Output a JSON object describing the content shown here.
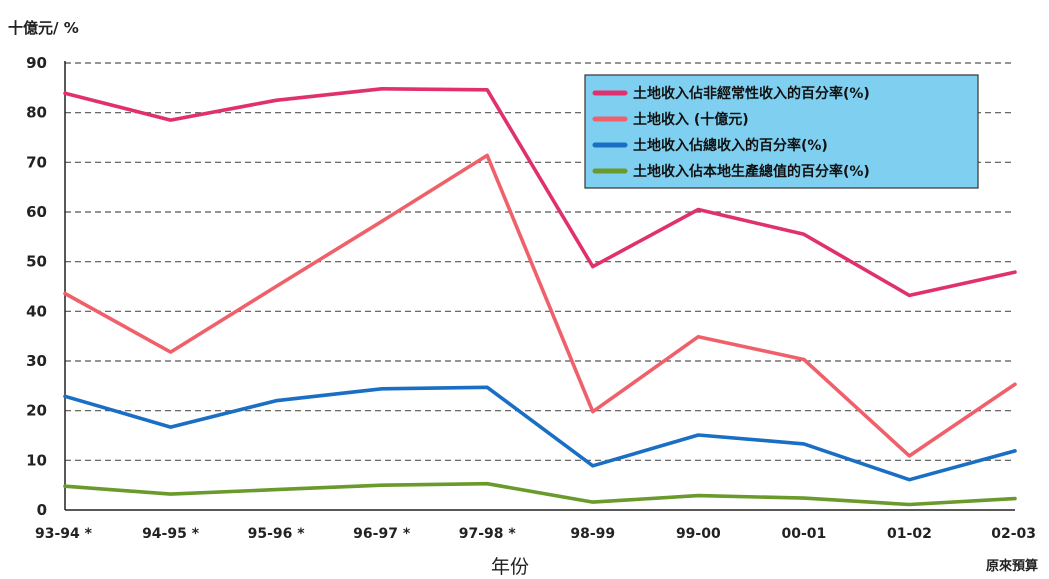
{
  "chart_data": {
    "type": "line",
    "ylabel": "十億元/ %",
    "xlabel": "年份",
    "note": "原來預算",
    "categories": [
      "93-94 *",
      "94-95 *",
      "95-96 *",
      "96-97 *",
      "97-98 *",
      "98-99",
      "99-00",
      "00-01",
      "01-02",
      "02-03"
    ],
    "ylim": [
      0,
      90
    ],
    "yticks": [
      0,
      10,
      20,
      30,
      40,
      50,
      60,
      70,
      80,
      90
    ],
    "grid": "horizontal dashed",
    "legend_position": "top-right",
    "series": [
      {
        "name": "土地收入佔非經常性收入的百分率(%)",
        "color": "#e0306e",
        "values": [
          83.9,
          78.5,
          82.5,
          84.8,
          84.6,
          49,
          60.5,
          55.5,
          43.2,
          47.9
        ]
      },
      {
        "name": "土地收入 (十億元)",
        "color": "#f0606a",
        "values": [
          43.6,
          31.8,
          45,
          58.1,
          71.4,
          19.8,
          34.9,
          30.3,
          10.9,
          25.3
        ]
      },
      {
        "name": "土地收入佔總收入的百分率(%)",
        "color": "#1a6fc4",
        "values": [
          22.9,
          16.7,
          22,
          24.4,
          24.7,
          8.9,
          15.1,
          13.3,
          6.1,
          11.9
        ]
      },
      {
        "name": "土地收入佔本地生產總值的百分率(%)",
        "color": "#6a9a2c",
        "values": [
          4.8,
          3.2,
          4.1,
          5.0,
          5.3,
          1.6,
          2.9,
          2.4,
          1.1,
          2.3
        ]
      }
    ]
  }
}
